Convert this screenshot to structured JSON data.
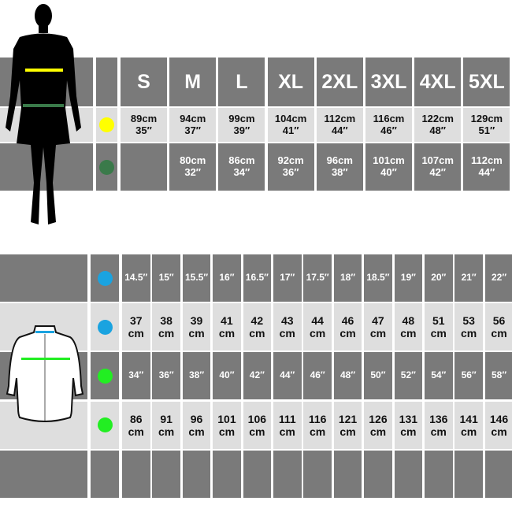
{
  "top_table": {
    "sizes": [
      "S",
      "M",
      "L",
      "XL",
      "2XL",
      "3XL",
      "4XL",
      "5XL"
    ],
    "rows": [
      {
        "measure": "chest",
        "marker_color": "#ffff00",
        "values": [
          [
            "89cm",
            "35″"
          ],
          [
            "94cm",
            "37″"
          ],
          [
            "99cm",
            "39″"
          ],
          [
            "104cm",
            "41″"
          ],
          [
            "112cm",
            "44″"
          ],
          [
            "116cm",
            "46″"
          ],
          [
            "122cm",
            "48″"
          ],
          [
            "129cm",
            "51″"
          ]
        ]
      },
      {
        "measure": "waist",
        "marker_color": "#3a7a4a",
        "values": [
          [
            "",
            ""
          ],
          [
            "80cm",
            "32″"
          ],
          [
            "86cm",
            "34″"
          ],
          [
            "92cm",
            "36″"
          ],
          [
            "96cm",
            "38″"
          ],
          [
            "101cm",
            "40″"
          ],
          [
            "107cm",
            "42″"
          ],
          [
            "112cm",
            "44″"
          ]
        ]
      }
    ]
  },
  "bottom_table": {
    "rows": [
      {
        "measure": "collar-inches",
        "marker_color": "#1aa3e0",
        "values": [
          "14.5″",
          "15″",
          "15.5″",
          "16″",
          "16.5″",
          "17″",
          "17.5″",
          "18″",
          "18.5″",
          "19″",
          "20″",
          "21″",
          "22″"
        ]
      },
      {
        "measure": "collar-cm",
        "marker_color": "#1aa3e0",
        "values": [
          [
            "37",
            "cm"
          ],
          [
            "38",
            "cm"
          ],
          [
            "39",
            "cm"
          ],
          [
            "41",
            "cm"
          ],
          [
            "42",
            "cm"
          ],
          [
            "43",
            "cm"
          ],
          [
            "44",
            "cm"
          ],
          [
            "46",
            "cm"
          ],
          [
            "47",
            "cm"
          ],
          [
            "48",
            "cm"
          ],
          [
            "51",
            "cm"
          ],
          [
            "53",
            "cm"
          ],
          [
            "56",
            "cm"
          ]
        ]
      },
      {
        "measure": "chest-inches",
        "marker_color": "#22ee22",
        "values": [
          "34″",
          "36″",
          "38″",
          "40″",
          "42″",
          "44″",
          "46″",
          "48″",
          "50″",
          "52″",
          "54″",
          "56″",
          "58″"
        ]
      },
      {
        "measure": "chest-cm",
        "marker_color": "#22ee22",
        "values": [
          [
            "86",
            "cm"
          ],
          [
            "91",
            "cm"
          ],
          [
            "96",
            "cm"
          ],
          [
            "101",
            "cm"
          ],
          [
            "106",
            "cm"
          ],
          [
            "111",
            "cm"
          ],
          [
            "116",
            "cm"
          ],
          [
            "121",
            "cm"
          ],
          [
            "126",
            "cm"
          ],
          [
            "131",
            "cm"
          ],
          [
            "136",
            "cm"
          ],
          [
            "141",
            "cm"
          ],
          [
            "146",
            "cm"
          ]
        ]
      },
      {
        "measure": "empty",
        "marker_color": "",
        "values": []
      }
    ]
  }
}
